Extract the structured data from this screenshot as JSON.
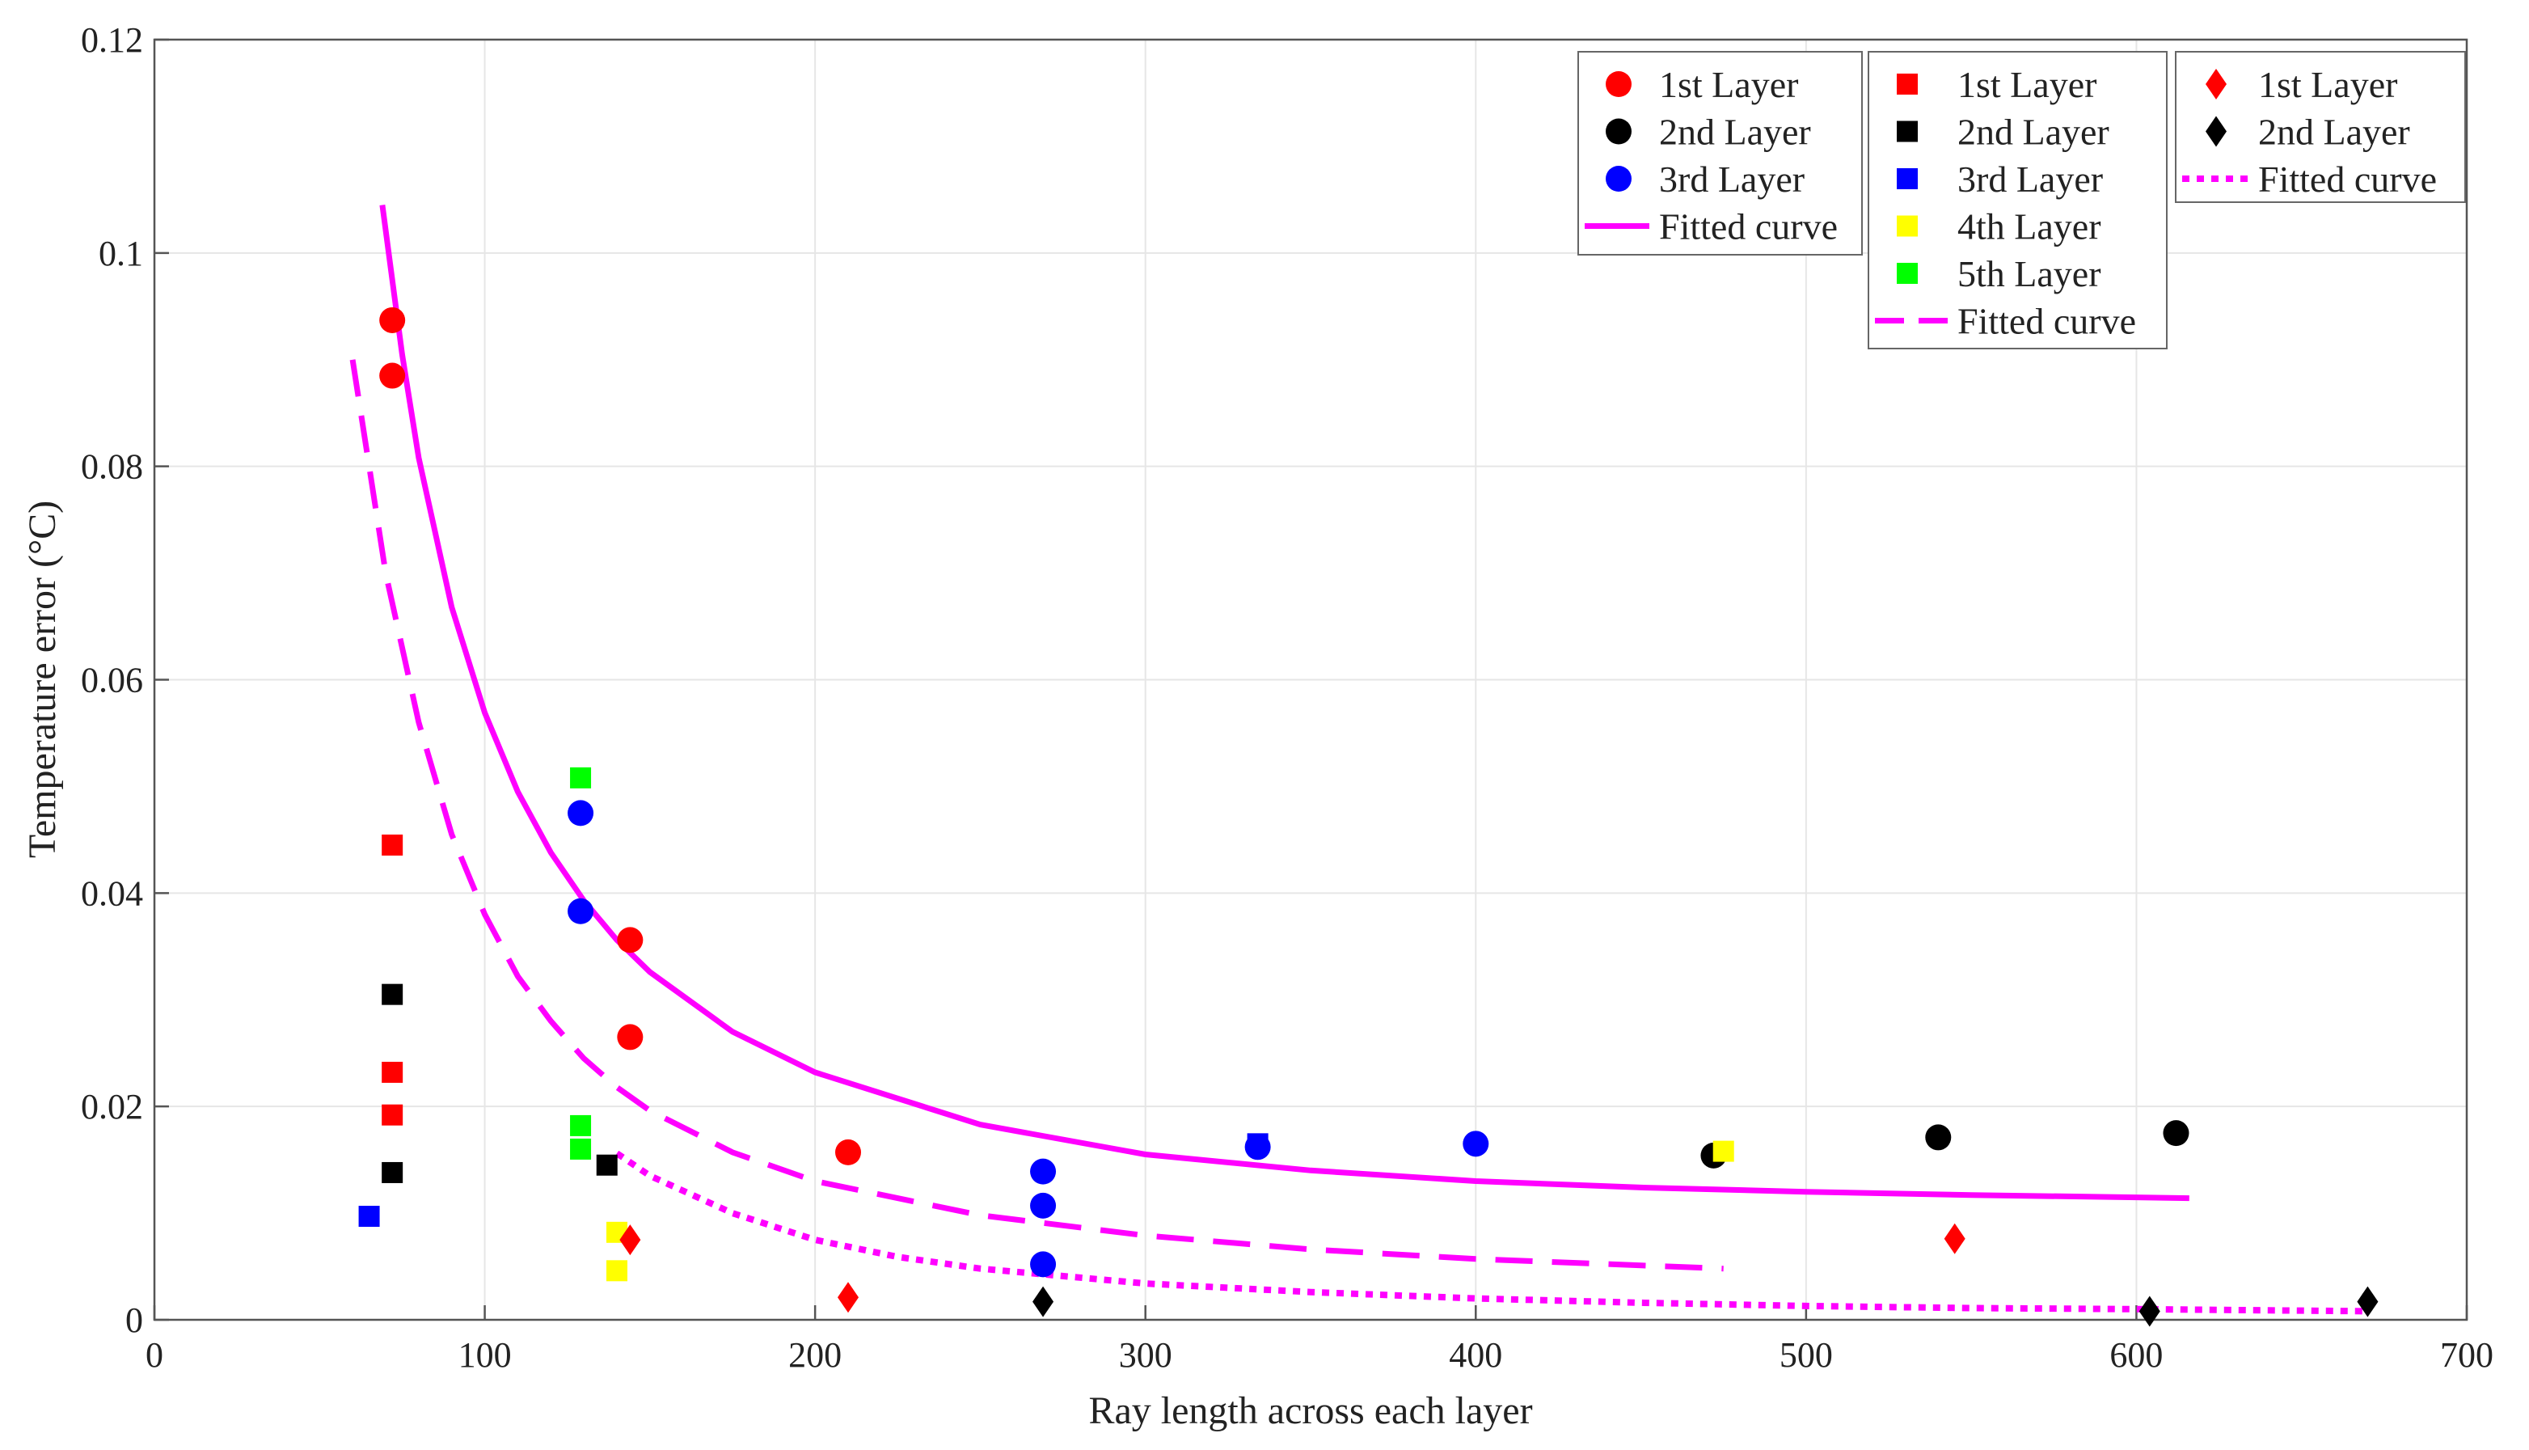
{
  "chart_data": {
    "type": "scatter",
    "title": "",
    "xlabel": "Ray length across each layer",
    "ylabel": "Temperature error (°C)",
    "xlim": [
      0,
      700
    ],
    "ylim": [
      0,
      0.12
    ],
    "grid": true,
    "x_ticks": [
      0,
      100,
      200,
      300,
      400,
      500,
      600,
      700
    ],
    "x_tick_labels": [
      "0",
      "100",
      "200",
      "300",
      "400",
      "500",
      "600",
      "700"
    ],
    "y_ticks": [
      0,
      0.02,
      0.04,
      0.06,
      0.08,
      0.1,
      0.12
    ],
    "y_tick_labels": [
      "0",
      "0.02",
      "0.04",
      "0.06",
      "0.08",
      "0.1",
      "0.12"
    ],
    "colors": {
      "red": "#ff0000",
      "black": "#000000",
      "blue": "#0000ff",
      "yellow": "#ffff00",
      "green": "#00ff00",
      "magenta": "#ff00ff"
    },
    "groups": [
      {
        "marker": "circle",
        "curve_style": "solid",
        "legend_position": "top-right",
        "series": [
          {
            "name": "1st Layer",
            "color": "#ff0000",
            "points": [
              [
                72,
                0.0937
              ],
              [
                72,
                0.0885
              ],
              [
                144,
                0.0356
              ],
              [
                144,
                0.0265
              ],
              [
                210,
                0.0157
              ]
            ]
          },
          {
            "name": "2nd Layer",
            "color": "#000000",
            "points": [
              [
                472,
                0.0154
              ],
              [
                540,
                0.0171
              ],
              [
                612,
                0.0175
              ]
            ]
          },
          {
            "name": "3rd Layer",
            "color": "#0000ff",
            "points": [
              [
                129,
                0.0475
              ],
              [
                129,
                0.0383
              ],
              [
                269,
                0.0139
              ],
              [
                269,
                0.0107
              ],
              [
                269,
                0.0052
              ],
              [
                334,
                0.0162
              ],
              [
                400,
                0.0165
              ]
            ]
          }
        ],
        "fitted_curve": {
          "name": "Fitted curve",
          "color": "#ff00ff",
          "x": [
            69,
            75,
            80,
            90,
            100,
            110,
            120,
            130,
            140,
            150,
            175,
            200,
            250,
            300,
            350,
            400,
            450,
            500,
            550,
            616
          ],
          "y": [
            0.1045,
            0.0905,
            0.0808,
            0.0668,
            0.0569,
            0.0495,
            0.0438,
            0.0393,
            0.0356,
            0.0326,
            0.027,
            0.0232,
            0.0183,
            0.0155,
            0.014,
            0.013,
            0.0124,
            0.012,
            0.0117,
            0.0114
          ]
        }
      },
      {
        "marker": "square",
        "curve_style": "dashed",
        "legend_position": "top-right",
        "series": [
          {
            "name": "1st Layer",
            "color": "#ff0000",
            "points": [
              [
                72,
                0.0445
              ],
              [
                72,
                0.0232
              ],
              [
                72,
                0.0192
              ]
            ]
          },
          {
            "name": "2nd Layer",
            "color": "#000000",
            "points": [
              [
                72,
                0.0305
              ],
              [
                72,
                0.0138
              ],
              [
                137,
                0.0145
              ]
            ]
          },
          {
            "name": "3rd Layer",
            "color": "#0000ff",
            "points": [
              [
                65,
                0.0097
              ],
              [
                334,
                0.0165
              ]
            ]
          },
          {
            "name": "4th Layer",
            "color": "#ffff00",
            "points": [
              [
                140,
                0.0082
              ],
              [
                140,
                0.0046
              ],
              [
                475,
                0.0158
              ]
            ]
          },
          {
            "name": "5th Layer",
            "color": "#00ff00",
            "points": [
              [
                129,
                0.0508
              ],
              [
                129,
                0.0182
              ],
              [
                129,
                0.016
              ]
            ]
          }
        ],
        "fitted_curve": {
          "name": "Fitted curve",
          "color": "#ff00ff",
          "x": [
            60,
            65,
            70,
            80,
            90,
            100,
            110,
            120,
            130,
            140,
            150,
            175,
            200,
            250,
            300,
            350,
            400,
            475
          ],
          "y": [
            0.09,
            0.08,
            0.07,
            0.056,
            0.0455,
            0.038,
            0.0322,
            0.028,
            0.0245,
            0.0218,
            0.0196,
            0.0157,
            0.013,
            0.0098,
            0.0079,
            0.0066,
            0.0057,
            0.0048
          ]
        }
      },
      {
        "marker": "diamond",
        "curve_style": "dotted",
        "legend_position": "top-right",
        "series": [
          {
            "name": "1st Layer",
            "color": "#ff0000",
            "points": [
              [
                144,
                0.0075
              ],
              [
                210,
                0.0021
              ],
              [
                545,
                0.0076
              ]
            ]
          },
          {
            "name": "2nd Layer",
            "color": "#000000",
            "points": [
              [
                269,
                0.0017
              ],
              [
                604,
                0.0008
              ],
              [
                670,
                0.0017
              ]
            ]
          }
        ],
        "fitted_curve": {
          "name": "Fitted curve",
          "color": "#ff00ff",
          "x": [
            140,
            150,
            175,
            200,
            225,
            250,
            300,
            350,
            400,
            450,
            500,
            550,
            600,
            670
          ],
          "y": [
            0.0156,
            0.0135,
            0.01,
            0.0075,
            0.0059,
            0.0048,
            0.0034,
            0.0026,
            0.002,
            0.0016,
            0.0013,
            0.0011,
            0.001,
            0.0008
          ]
        }
      }
    ]
  }
}
